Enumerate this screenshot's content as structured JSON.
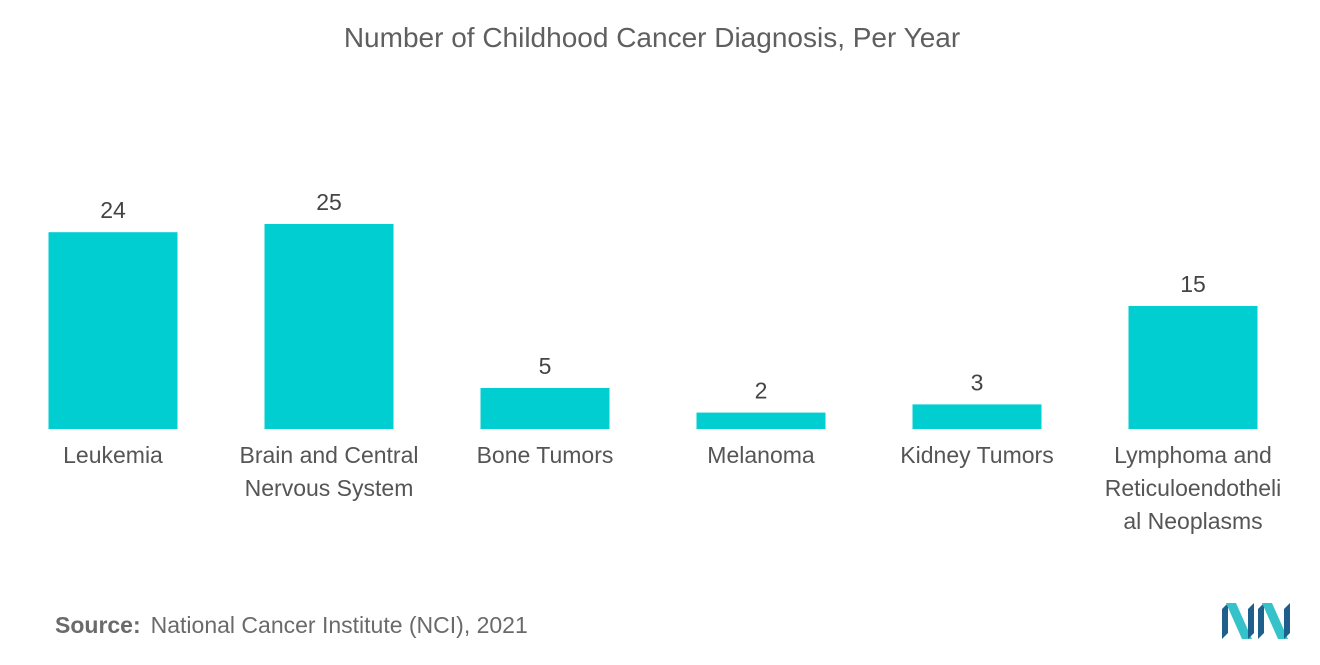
{
  "chart_data": {
    "type": "bar",
    "title": "Number of Childhood Cancer Diagnosis, Per Year",
    "categories": [
      [
        "Leukemia"
      ],
      [
        "Brain and Central",
        "Nervous System"
      ],
      [
        "Bone Tumors"
      ],
      [
        "Melanoma"
      ],
      [
        "Kidney Tumors"
      ],
      [
        "Lymphoma and",
        "Reticuloendotheli",
        "al Neoplasms"
      ]
    ],
    "values": [
      24,
      25,
      5,
      2,
      3,
      15
    ],
    "value_labels": [
      "24",
      "25",
      "5",
      "2",
      "3",
      "15"
    ],
    "xlabel": "",
    "ylabel": "",
    "ylim": [
      0,
      25
    ],
    "grid": false,
    "legend": "none",
    "bar_color": "#00ced1"
  },
  "source": {
    "label": "Source:",
    "text": "National Cancer Institute (NCI), 2021"
  },
  "logo": {
    "color_dark": "#1f5f8b",
    "color_light": "#35c2c9"
  }
}
